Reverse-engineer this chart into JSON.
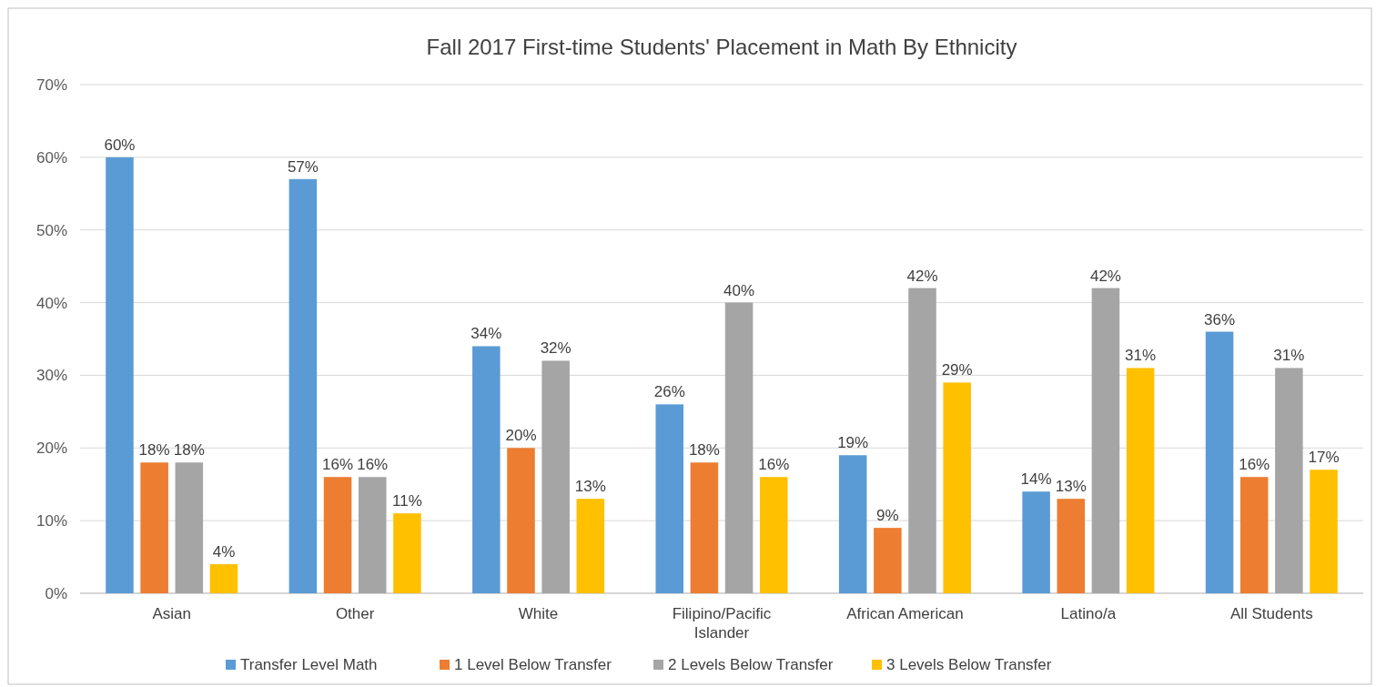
{
  "chart_data": {
    "type": "bar",
    "title": "Fall 2017 First-time Students' Placement in Math By Ethnicity",
    "categories": [
      "Asian",
      "Other",
      "White",
      "Filipino/Pacific Islander",
      "African American",
      "Latino/a",
      "All Students"
    ],
    "series": [
      {
        "name": "Transfer Level Math",
        "color": "#5b9bd5",
        "values": [
          60,
          57,
          34,
          26,
          19,
          14,
          36
        ],
        "value_labels": [
          "60%",
          "57%",
          "34%",
          "26%",
          "19%",
          "14%",
          "36%"
        ]
      },
      {
        "name": "1 Level Below Transfer",
        "color": "#ed7d31",
        "values": [
          18,
          16,
          20,
          18,
          9,
          13,
          16
        ],
        "value_labels": [
          "18%",
          "16%",
          "20%",
          "18%",
          "9%",
          "13%",
          "16%"
        ]
      },
      {
        "name": "2 Levels Below Transfer",
        "color": "#a5a5a5",
        "values": [
          18,
          16,
          32,
          40,
          42,
          42,
          31
        ],
        "value_labels": [
          "18%",
          "16%",
          "32%",
          "40%",
          "42%",
          "42%",
          "31%"
        ]
      },
      {
        "name": "3 Levels Below Transfer",
        "color": "#ffc000",
        "values": [
          4,
          11,
          13,
          16,
          29,
          31,
          17
        ],
        "value_labels": [
          "4%",
          "11%",
          "13%",
          "16%",
          "29%",
          "31%",
          "17%"
        ]
      }
    ],
    "ylim": [
      0,
      70
    ],
    "yticks": [
      {
        "value": 0,
        "label": "0%"
      },
      {
        "value": 10,
        "label": "10%"
      },
      {
        "value": 20,
        "label": "20%"
      },
      {
        "value": 30,
        "label": "30%"
      },
      {
        "value": 40,
        "label": "40%"
      },
      {
        "value": 50,
        "label": "50%"
      },
      {
        "value": 60,
        "label": "60%"
      },
      {
        "value": 70,
        "label": "70%"
      }
    ],
    "grid": "y",
    "legend": "bottom"
  }
}
